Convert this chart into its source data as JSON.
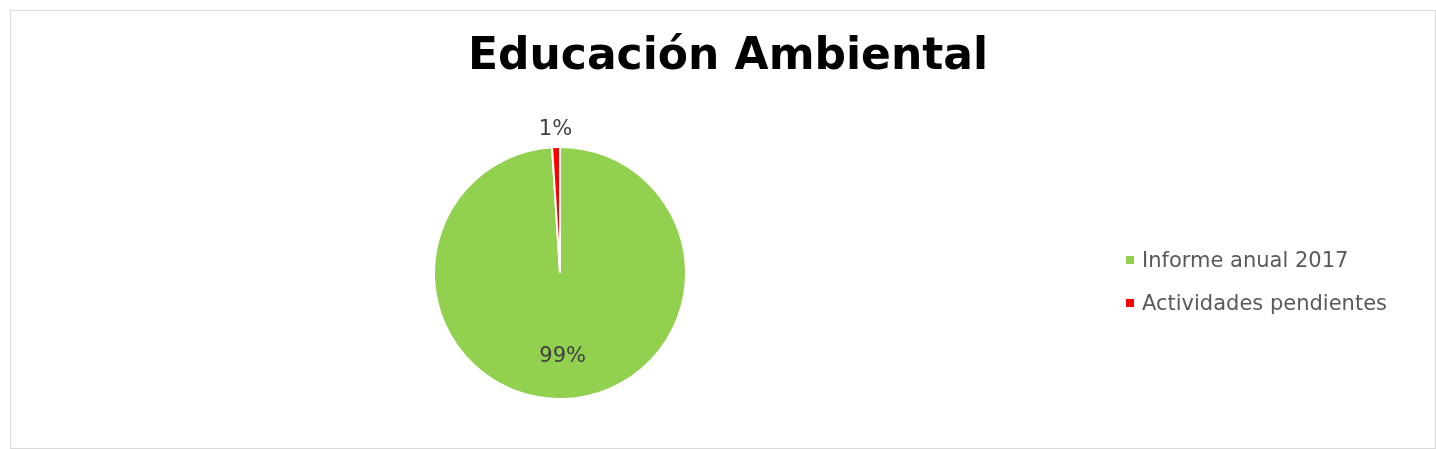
{
  "chart_data": {
    "type": "pie",
    "title": "Educación Ambiental",
    "categories": [
      "Informe anual 2017",
      "Actividades pendientes"
    ],
    "values": [
      99,
      1
    ],
    "colors": [
      "#92d050",
      "#ff0000"
    ],
    "value_labels": [
      "99%",
      "1%"
    ],
    "legend": "right"
  }
}
